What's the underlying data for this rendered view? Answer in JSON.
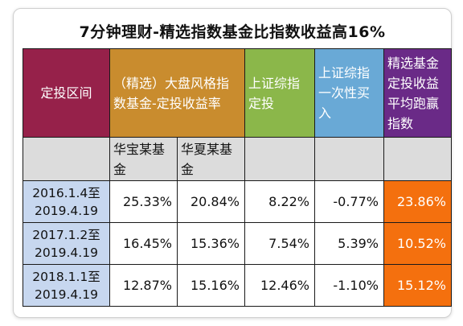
{
  "title": "7分钟理财-精选指数基金比指数收益高16%",
  "headers": {
    "period": "定投区间",
    "fund_return": "（精选）大盘风格指数基金-定投收益率",
    "index_dca": "上证综指定投",
    "index_lump": "上证综指一次性买入",
    "beat": "精选基金定投收益平均跑赢指数"
  },
  "subheaders": {
    "fund_a": "华宝某基金",
    "fund_b": "华夏某基金"
  },
  "rows": [
    {
      "period": "2016.1.4至2019.4.19",
      "fund_a": "25.33%",
      "fund_b": "20.84%",
      "index_dca": "8.22%",
      "index_lump": "-0.77%",
      "beat": "23.86%"
    },
    {
      "period": "2017.1.2至2019.4.19",
      "fund_a": "16.45%",
      "fund_b": "15.36%",
      "index_dca": "7.54%",
      "index_lump": "5.39%",
      "beat": "10.52%"
    },
    {
      "period": "2018.1.1至2019.4.19",
      "fund_a": "12.87%",
      "fund_b": "15.16%",
      "index_dca": "12.46%",
      "index_lump": "-1.10%",
      "beat": "15.12%"
    }
  ],
  "colors": {
    "period_header": "#96214a",
    "fund_header": "#c98c2e",
    "index_dca_header": "#8bb74a",
    "index_lump_header": "#69a9d6",
    "beat_header": "#6a2a87",
    "beat_cells": "#f4700e",
    "period_cells": "#c7d7ef",
    "subheader_row": "#dcdcdc"
  }
}
